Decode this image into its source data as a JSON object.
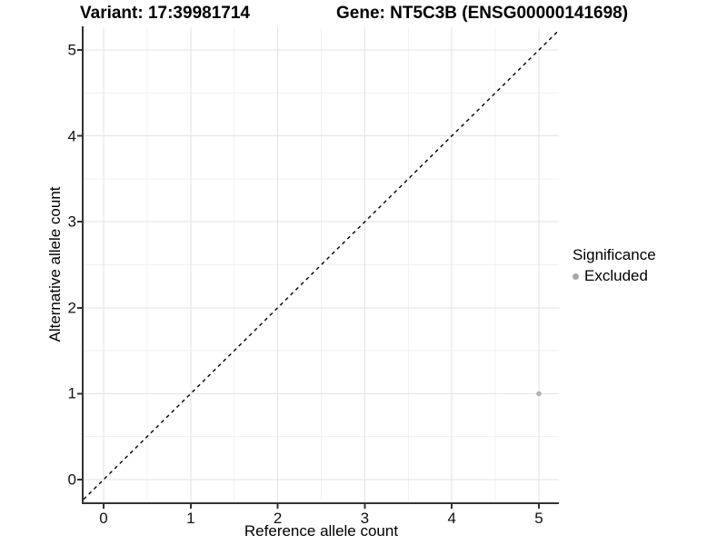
{
  "header": {
    "variant_title": "Variant: 17:39981714",
    "gene_title": "Gene: NT5C3B (ENSG00000141698)"
  },
  "chart_data": {
    "type": "scatter",
    "xlabel": "Reference allele count",
    "ylabel": "Alternative allele count",
    "x_ticks": [
      0,
      1,
      2,
      3,
      4,
      5
    ],
    "y_ticks": [
      0,
      1,
      2,
      3,
      4,
      5
    ],
    "x_minor_ticks": [
      0.5,
      1.5,
      2.5,
      3.5,
      4.5
    ],
    "y_minor_ticks": [
      0.5,
      1.5,
      2.5,
      3.5,
      4.5
    ],
    "xlim": [
      -0.23,
      5.23
    ],
    "ylim": [
      -0.265,
      5.265
    ],
    "grid": "major and minor, light gray on white",
    "points": [
      {
        "x": 5,
        "y": 1,
        "series": "Excluded"
      }
    ],
    "identity_line": {
      "slope": 1,
      "intercept": 0,
      "style": "dashed",
      "color": "#000000"
    },
    "legend": {
      "title": "Significance",
      "position": "right",
      "items": [
        {
          "label": "Excluded",
          "color": "#a8a8a8"
        }
      ]
    },
    "colors": {
      "point": "#b3b3b3",
      "grid_major": "#e3e3e3",
      "grid_minor": "#f1f1f1",
      "axis": "#333333",
      "tick_text": "#111111",
      "dashed_line": "#000000"
    }
  }
}
